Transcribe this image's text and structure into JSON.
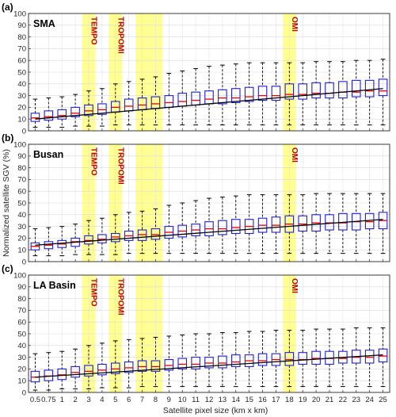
{
  "figure": {
    "ylabel": "Normalized satellite SGV (%)",
    "xlabel": "Satellite pixel size (km x km)"
  },
  "colors": {
    "box": "#1f1fd6",
    "median": "#e00000",
    "whisker": "#000000",
    "fit": "#000000",
    "highlight": "#ffff80",
    "sensor_label": "#c00000"
  },
  "chart_data": [
    {
      "type": "box",
      "panel_label": "(a)",
      "region": "SMA",
      "categories": [
        "0.5",
        "0.75",
        "1",
        "2",
        "3",
        "4",
        "5",
        "6",
        "7",
        "8",
        "9",
        "10",
        "11",
        "12",
        "13",
        "14",
        "15",
        "16",
        "17",
        "18",
        "19",
        "20",
        "21",
        "22",
        "23",
        "24",
        "25"
      ],
      "xlabel": "Satellite pixel size (km x km)",
      "ylabel": "Normalized satellite SGV (%)",
      "ylim": [
        0,
        100
      ],
      "yticks": [
        0,
        10,
        20,
        30,
        40,
        50,
        60,
        70,
        80,
        90,
        100
      ],
      "grid": true,
      "highlight_bands": [
        {
          "label": "TEMPO",
          "categories": [
            "3"
          ]
        },
        {
          "label": "TROPOMI",
          "categories": [
            "5"
          ]
        },
        {
          "label": "",
          "categories": [
            "7",
            "8"
          ]
        },
        {
          "label": "OMI",
          "categories": [
            "18"
          ]
        }
      ],
      "boxes": {
        "whisker_low": [
          3,
          3,
          3,
          4,
          4,
          4,
          5,
          5,
          5,
          5,
          5,
          5,
          5,
          5,
          5,
          5,
          5,
          5,
          5,
          5,
          5,
          5,
          5,
          5,
          5,
          5,
          5
        ],
        "q1": [
          8,
          9,
          10,
          12,
          13,
          14,
          16,
          17,
          18,
          19,
          20,
          21,
          22,
          23,
          23,
          24,
          25,
          26,
          26,
          27,
          27,
          28,
          28,
          28,
          29,
          29,
          30
        ],
        "median": [
          11,
          12,
          13,
          15,
          17,
          18,
          20,
          21,
          22,
          23,
          24,
          25,
          26,
          27,
          28,
          28,
          29,
          30,
          30,
          31,
          31,
          32,
          32,
          33,
          33,
          34,
          34
        ],
        "q3": [
          15,
          17,
          18,
          20,
          22,
          23,
          25,
          27,
          28,
          29,
          30,
          32,
          33,
          34,
          35,
          36,
          37,
          38,
          38,
          40,
          40,
          41,
          41,
          42,
          43,
          43,
          44
        ],
        "whisker_high": [
          27,
          28,
          29,
          31,
          34,
          36,
          40,
          42,
          44,
          46,
          49,
          51,
          53,
          55,
          56,
          57,
          58,
          58,
          58,
          58,
          58,
          59,
          59,
          59,
          60,
          60,
          61
        ]
      },
      "fit_line": {
        "y_start": 10,
        "y_end": 36
      }
    },
    {
      "type": "box",
      "panel_label": "(b)",
      "region": "Busan",
      "categories": [
        "0.5",
        "0.75",
        "1",
        "2",
        "3",
        "4",
        "5",
        "6",
        "7",
        "8",
        "9",
        "10",
        "11",
        "12",
        "13",
        "14",
        "15",
        "16",
        "17",
        "18",
        "19",
        "20",
        "21",
        "22",
        "23",
        "24",
        "25"
      ],
      "xlabel": "Satellite pixel size (km x km)",
      "ylabel": "Normalized satellite SGV (%)",
      "ylim": [
        0,
        100
      ],
      "yticks": [
        0,
        10,
        20,
        30,
        40,
        50,
        60,
        70,
        80,
        90,
        100
      ],
      "grid": true,
      "highlight_bands": [
        {
          "label": "TEMPO",
          "categories": [
            "3"
          ]
        },
        {
          "label": "TROPOMI",
          "categories": [
            "5"
          ]
        },
        {
          "label": "",
          "categories": [
            "7",
            "8"
          ]
        },
        {
          "label": "OMI",
          "categories": [
            "18"
          ]
        }
      ],
      "boxes": {
        "whisker_low": [
          5,
          5,
          5,
          6,
          6,
          6,
          6,
          7,
          7,
          7,
          7,
          7,
          7,
          7,
          7,
          7,
          7,
          7,
          7,
          7,
          7,
          7,
          7,
          7,
          7,
          7,
          7
        ],
        "q1": [
          10,
          11,
          12,
          13,
          15,
          16,
          17,
          18,
          18,
          19,
          20,
          21,
          22,
          22,
          23,
          24,
          24,
          25,
          25,
          25,
          26,
          26,
          27,
          27,
          27,
          28,
          28
        ],
        "median": [
          13,
          14,
          15,
          17,
          18,
          19,
          21,
          22,
          23,
          23,
          25,
          26,
          27,
          28,
          28,
          29,
          30,
          31,
          31,
          32,
          32,
          33,
          33,
          33,
          34,
          34,
          35
        ],
        "q3": [
          16,
          17,
          18,
          20,
          22,
          23,
          24,
          26,
          27,
          28,
          30,
          31,
          32,
          34,
          35,
          36,
          36,
          37,
          38,
          39,
          39,
          40,
          40,
          41,
          41,
          41,
          42
        ],
        "whisker_high": [
          28,
          29,
          30,
          32,
          35,
          37,
          40,
          42,
          43,
          45,
          48,
          50,
          52,
          54,
          55,
          56,
          57,
          57,
          57,
          57,
          57,
          58,
          58,
          58,
          58,
          58,
          58
        ]
      },
      "fit_line": {
        "y_start": 14,
        "y_end": 36
      }
    },
    {
      "type": "box",
      "panel_label": "(c)",
      "region": "LA Basin",
      "categories": [
        "0.5",
        "0.75",
        "1",
        "2",
        "3",
        "4",
        "5",
        "6",
        "7",
        "8",
        "9",
        "10",
        "11",
        "12",
        "13",
        "14",
        "15",
        "16",
        "17",
        "18",
        "19",
        "20",
        "21",
        "22",
        "23",
        "24",
        "25"
      ],
      "xlabel": "Satellite pixel size (km x km)",
      "ylabel": "Normalized satellite SGV (%)",
      "ylim": [
        0,
        100
      ],
      "yticks": [
        0,
        10,
        20,
        30,
        40,
        50,
        60,
        70,
        80,
        90,
        100
      ],
      "grid": true,
      "highlight_bands": [
        {
          "label": "TEMPO",
          "categories": [
            "3"
          ]
        },
        {
          "label": "TROPOMI",
          "categories": [
            "5"
          ]
        },
        {
          "label": "",
          "categories": [
            "7",
            "8"
          ]
        },
        {
          "label": "OMI",
          "categories": [
            "18"
          ]
        }
      ],
      "boxes": {
        "whisker_low": [
          2,
          2,
          3,
          3,
          3,
          4,
          4,
          4,
          5,
          5,
          5,
          5,
          5,
          5,
          5,
          5,
          5,
          5,
          5,
          5,
          5,
          5,
          5,
          5,
          5,
          5,
          5
        ],
        "q1": [
          9,
          10,
          11,
          13,
          14,
          15,
          16,
          17,
          18,
          18,
          19,
          20,
          20,
          21,
          21,
          22,
          22,
          23,
          23,
          23,
          24,
          24,
          24,
          25,
          25,
          25,
          26
        ],
        "median": [
          13,
          14,
          15,
          17,
          18,
          19,
          20,
          21,
          22,
          22,
          23,
          24,
          24,
          25,
          25,
          26,
          27,
          27,
          28,
          28,
          28,
          29,
          29,
          29,
          30,
          30,
          31
        ],
        "q3": [
          18,
          19,
          20,
          22,
          23,
          24,
          25,
          26,
          27,
          27,
          28,
          29,
          30,
          30,
          31,
          32,
          32,
          33,
          33,
          34,
          34,
          35,
          35,
          35,
          36,
          36,
          37
        ],
        "whisker_high": [
          33,
          34,
          35,
          37,
          40,
          42,
          44,
          45,
          46,
          47,
          48,
          49,
          50,
          50,
          51,
          51,
          52,
          52,
          53,
          53,
          53,
          54,
          54,
          54,
          55,
          55,
          55
        ]
      },
      "fit_line": {
        "y_start": 13,
        "y_end": 32
      }
    }
  ]
}
